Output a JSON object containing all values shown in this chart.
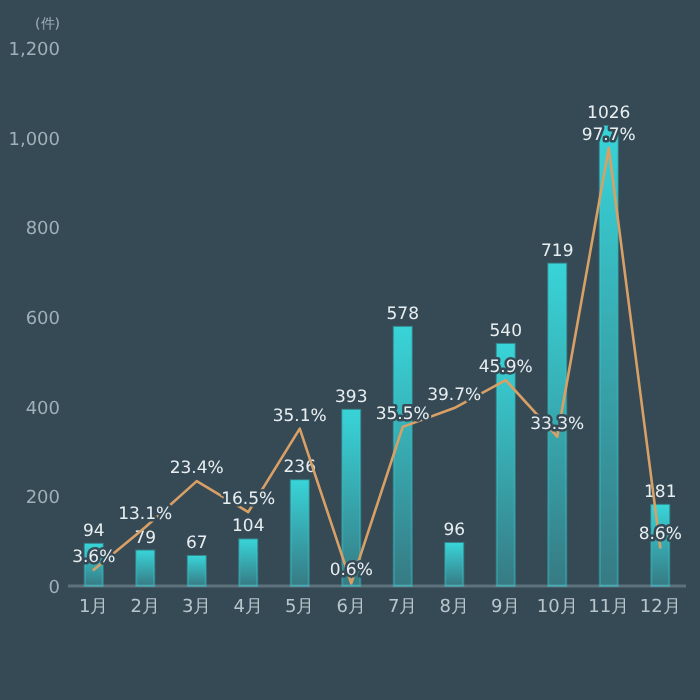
{
  "chart_data": {
    "type": "bar",
    "ylabel": "(件)",
    "categories": [
      "1月",
      "2月",
      "3月",
      "4月",
      "5月",
      "6月",
      "7月",
      "8月",
      "9月",
      "10月",
      "11月",
      "12月"
    ],
    "series": [
      {
        "color": "#38d4d8",
        "values": [
          94,
          79,
          67,
          104,
          236,
          393,
          578,
          96,
          540,
          719,
          1026,
          181
        ]
      },
      {
        "type": "line",
        "axis": "y2",
        "color": "#d9a066",
        "values": [
          3.6,
          13.1,
          23.4,
          16.5,
          35.1,
          0.6,
          35.5,
          39.7,
          45.9,
          33.3,
          97.7,
          8.6
        ],
        "value_labels": [
          "3.6%",
          "13.1%",
          "23.4%",
          "16.5%",
          "35.1%",
          "0.6%",
          "35.5%",
          "39.7%",
          "45.9%",
          "33.3%",
          "97.7%",
          "8.6%"
        ]
      }
    ],
    "data_labels": true,
    "ylim": [
      0,
      1200
    ],
    "yticks": [
      0,
      200,
      400,
      600,
      800,
      {
        "value": 1000,
        "label": "1,000"
      },
      {
        "value": 1200,
        "label": "1,200"
      }
    ],
    "grid": false,
    "marker": "none"
  }
}
